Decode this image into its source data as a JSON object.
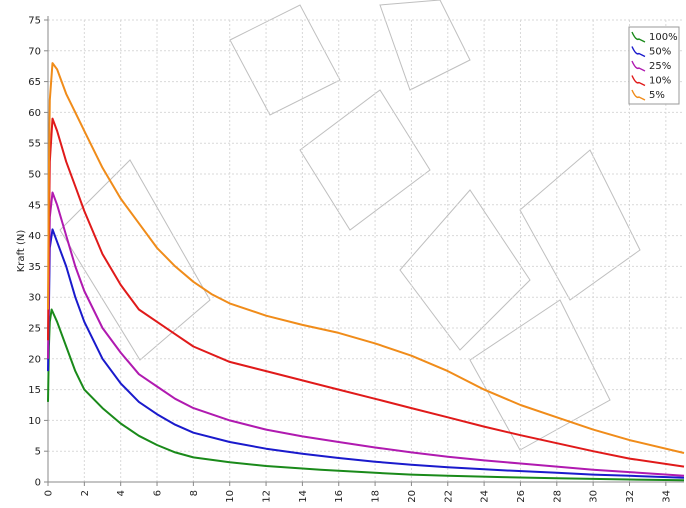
{
  "chart_data": {
    "type": "line",
    "title": "",
    "xlabel": "",
    "ylabel": "Kraft (N)",
    "xlim": [
      0,
      35
    ],
    "ylim": [
      0,
      75
    ],
    "xticks": [
      0,
      2,
      4,
      6,
      8,
      10,
      12,
      14,
      16,
      18,
      20,
      22,
      24,
      26,
      28,
      30,
      32,
      34
    ],
    "yticks": [
      0,
      5,
      10,
      15,
      20,
      25,
      30,
      35,
      40,
      45,
      50,
      55,
      60,
      65,
      70,
      75
    ],
    "grid": true,
    "legend_position": "top-right",
    "series": [
      {
        "name": "100%",
        "color": "#1a8a1a",
        "points": [
          [
            0,
            13
          ],
          [
            0.05,
            22
          ],
          [
            0.1,
            26
          ],
          [
            0.2,
            28
          ],
          [
            0.5,
            26
          ],
          [
            1,
            22
          ],
          [
            1.5,
            18
          ],
          [
            2,
            15
          ],
          [
            3,
            12
          ],
          [
            4,
            9.5
          ],
          [
            5,
            7.5
          ],
          [
            6,
            6
          ],
          [
            7,
            4.8
          ],
          [
            8,
            4
          ],
          [
            10,
            3.2
          ],
          [
            12,
            2.6
          ],
          [
            15,
            2
          ],
          [
            18,
            1.5
          ],
          [
            20,
            1.2
          ],
          [
            22,
            1.0
          ],
          [
            25,
            0.8
          ],
          [
            28,
            0.6
          ],
          [
            30,
            0.5
          ],
          [
            32,
            0.4
          ],
          [
            35,
            0.3
          ]
        ]
      },
      {
        "name": "50%",
        "color": "#1a1acc",
        "points": [
          [
            0,
            18
          ],
          [
            0.05,
            28
          ],
          [
            0.1,
            38
          ],
          [
            0.25,
            41
          ],
          [
            0.5,
            39
          ],
          [
            1,
            35
          ],
          [
            1.5,
            30
          ],
          [
            2,
            26
          ],
          [
            3,
            20
          ],
          [
            4,
            16
          ],
          [
            5,
            13
          ],
          [
            6,
            11
          ],
          [
            7,
            9.3
          ],
          [
            8,
            8
          ],
          [
            10,
            6.5
          ],
          [
            12,
            5.4
          ],
          [
            14,
            4.6
          ],
          [
            16,
            3.9
          ],
          [
            18,
            3.3
          ],
          [
            20,
            2.8
          ],
          [
            22,
            2.4
          ],
          [
            25,
            1.9
          ],
          [
            28,
            1.5
          ],
          [
            30,
            1.2
          ],
          [
            32,
            1.0
          ],
          [
            35,
            0.7
          ]
        ]
      },
      {
        "name": "25%",
        "color": "#b01ab0",
        "points": [
          [
            0,
            20
          ],
          [
            0.05,
            32
          ],
          [
            0.1,
            43
          ],
          [
            0.25,
            47
          ],
          [
            0.5,
            45
          ],
          [
            1,
            40
          ],
          [
            1.5,
            35
          ],
          [
            2,
            31
          ],
          [
            3,
            25
          ],
          [
            4,
            21
          ],
          [
            5,
            17.5
          ],
          [
            6,
            15.5
          ],
          [
            7,
            13.5
          ],
          [
            8,
            12
          ],
          [
            10,
            10
          ],
          [
            12,
            8.5
          ],
          [
            14,
            7.4
          ],
          [
            16,
            6.5
          ],
          [
            18,
            5.6
          ],
          [
            20,
            4.8
          ],
          [
            22,
            4.1
          ],
          [
            24,
            3.5
          ],
          [
            26,
            3.0
          ],
          [
            28,
            2.5
          ],
          [
            30,
            2.0
          ],
          [
            32,
            1.6
          ],
          [
            35,
            1.0
          ]
        ]
      },
      {
        "name": "10%",
        "color": "#e01a1a",
        "points": [
          [
            0,
            23
          ],
          [
            0.05,
            40
          ],
          [
            0.1,
            52
          ],
          [
            0.25,
            59
          ],
          [
            0.5,
            57
          ],
          [
            1,
            52
          ],
          [
            1.5,
            48
          ],
          [
            2,
            44
          ],
          [
            3,
            37
          ],
          [
            4,
            32
          ],
          [
            5,
            28
          ],
          [
            6,
            26
          ],
          [
            7,
            24
          ],
          [
            8,
            22
          ],
          [
            10,
            19.5
          ],
          [
            12,
            18
          ],
          [
            14,
            16.5
          ],
          [
            16,
            15
          ],
          [
            18,
            13.5
          ],
          [
            20,
            12
          ],
          [
            22,
            10.5
          ],
          [
            24,
            9
          ],
          [
            26,
            7.6
          ],
          [
            28,
            6.3
          ],
          [
            30,
            5
          ],
          [
            32,
            3.8
          ],
          [
            35,
            2.5
          ]
        ]
      },
      {
        "name": "5%",
        "color": "#f08c1a",
        "points": [
          [
            0,
            28
          ],
          [
            0.05,
            50
          ],
          [
            0.1,
            62
          ],
          [
            0.25,
            68
          ],
          [
            0.5,
            67
          ],
          [
            1,
            63
          ],
          [
            1.5,
            60
          ],
          [
            2,
            57
          ],
          [
            3,
            51
          ],
          [
            4,
            46
          ],
          [
            5,
            42
          ],
          [
            6,
            38
          ],
          [
            7,
            35
          ],
          [
            8,
            32.5
          ],
          [
            9,
            30.5
          ],
          [
            10,
            29
          ],
          [
            12,
            27
          ],
          [
            14,
            25.5
          ],
          [
            16,
            24.2
          ],
          [
            18,
            22.5
          ],
          [
            20,
            20.5
          ],
          [
            22,
            18
          ],
          [
            24,
            15
          ],
          [
            26,
            12.5
          ],
          [
            28,
            10.5
          ],
          [
            30,
            8.5
          ],
          [
            32,
            6.8
          ],
          [
            35,
            4.7
          ]
        ]
      }
    ]
  }
}
